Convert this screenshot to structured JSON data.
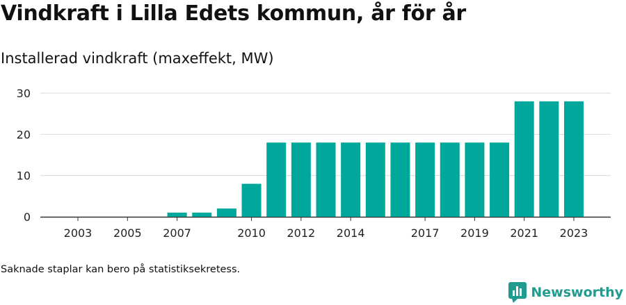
{
  "title": "Vindkraft i Lilla Edets kommun, år för år",
  "subtitle": "Installerad vindkraft (maxeffekt, MW)",
  "footnote": "Saknade staplar kan bero på statistiksekretess.",
  "brand": {
    "name": "Newsworthy",
    "color": "#1f9c8f",
    "icon": "newsworthy-bar-chart-icon"
  },
  "chart_data": {
    "type": "bar",
    "categories": [
      "2003",
      "2004",
      "2005",
      "2006",
      "2007",
      "2008",
      "2009",
      "2010",
      "2011",
      "2012",
      "2013",
      "2014",
      "2015",
      "2016",
      "2017",
      "2018",
      "2019",
      "2020",
      "2021",
      "2022",
      "2023"
    ],
    "values": [
      0,
      0,
      0,
      0,
      1,
      1,
      2,
      8,
      18,
      18,
      18,
      18,
      18,
      18,
      18,
      18,
      18,
      18,
      28,
      28,
      28
    ],
    "x_tick_labels": [
      "2003",
      "2005",
      "2007",
      "2010",
      "2012",
      "2014",
      "2017",
      "2019",
      "2021",
      "2023"
    ],
    "y_ticks": [
      0,
      10,
      20,
      30
    ],
    "ylim": [
      0,
      30
    ],
    "bar_color": "#00a79b",
    "grid": true,
    "xlabel": "",
    "ylabel": ""
  }
}
